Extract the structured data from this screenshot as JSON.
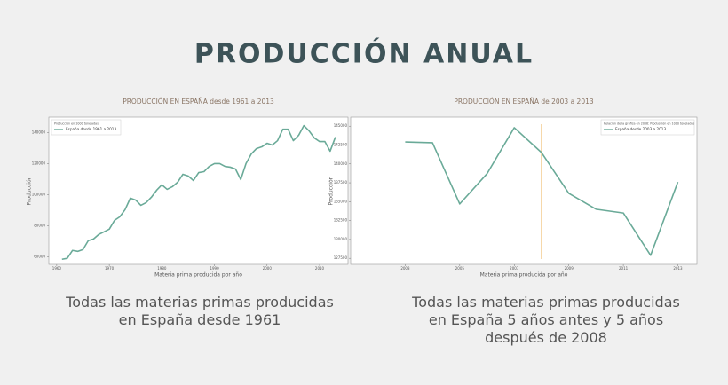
{
  "title": "PRODUCCIÓN ANUAL",
  "captions": [
    "Todas las materias primas producidas en España desde 1961",
    "Todas las materias primas producidas en España 5 años antes y 5 años después de 2008"
  ],
  "chart_data": [
    {
      "type": "line",
      "title": "PRODUCCIÓN EN ESPAÑA desde 1961 a 2013",
      "x_label": "Materia prima producida por año",
      "y_label": "Producción",
      "legend_title": "Producción en 1000 toneladas",
      "legend": "upper left",
      "x": [
        1961,
        1962,
        1963,
        1964,
        1965,
        1966,
        1967,
        1968,
        1969,
        1970,
        1971,
        1972,
        1973,
        1974,
        1975,
        1976,
        1977,
        1978,
        1979,
        1980,
        1981,
        1982,
        1983,
        1984,
        1985,
        1986,
        1987,
        1988,
        1989,
        1990,
        1991,
        1992,
        1993,
        1994,
        1995,
        1996,
        1997,
        1998,
        1999,
        2000,
        2001,
        2002,
        2003,
        2004,
        2005,
        2006,
        2007,
        2008,
        2009,
        2010,
        2011,
        2012,
        2013
      ],
      "series": [
        {
          "name": "España desde 1961 a 2013",
          "color": "#6aaa98",
          "values": [
            58300,
            58900,
            64000,
            63400,
            64600,
            70300,
            71400,
            74300,
            76000,
            77700,
            83400,
            85700,
            90300,
            97700,
            96500,
            93100,
            94800,
            98300,
            102800,
            106300,
            103400,
            105100,
            108000,
            113100,
            112000,
            109100,
            114200,
            114800,
            118200,
            120000,
            120000,
            118200,
            117700,
            116500,
            109700,
            120000,
            126200,
            129700,
            130800,
            133100,
            132000,
            134800,
            142200,
            142200,
            134800,
            138200,
            144500,
            141100,
            136500,
            134200,
            134200,
            128000,
            137100
          ]
        }
      ],
      "xlim": [
        1958.5,
        2015.4
      ],
      "xticks": [
        1960,
        1970,
        1980,
        1990,
        2000,
        2010
      ],
      "ylim": [
        55000,
        150000
      ],
      "yticks": [
        60000,
        80000,
        100000,
        120000,
        140000
      ]
    },
    {
      "type": "line",
      "title": "PRODUCCIÓN EN ESPAÑA de 2003 a 2013",
      "x_label": "Materia prima producida por año",
      "y_label": "Producción",
      "legend_title": "Relación de la gráfica en 2008: Producción en 1000 toneladas",
      "legend": "upper right",
      "x": [
        2003,
        2004,
        2005,
        2006,
        2007,
        2008,
        2009,
        2010,
        2011,
        2012,
        2013
      ],
      "series": [
        {
          "name": "España desde 2003 a 2013",
          "color": "#6aaa98",
          "values": [
            142900,
            142800,
            134700,
            138700,
            144800,
            141500,
            136100,
            134000,
            133500,
            127900,
            137600
          ]
        }
      ],
      "vline": 2008,
      "vline_color": "#f0c27a",
      "xlim": [
        2001,
        2013.7
      ],
      "xticks": [
        2003,
        2005,
        2007,
        2009,
        2011,
        2013
      ],
      "ylim": [
        126700,
        146200
      ],
      "yticks": [
        127500,
        130000,
        132500,
        135000,
        137500,
        140000,
        142500,
        145000
      ]
    }
  ]
}
